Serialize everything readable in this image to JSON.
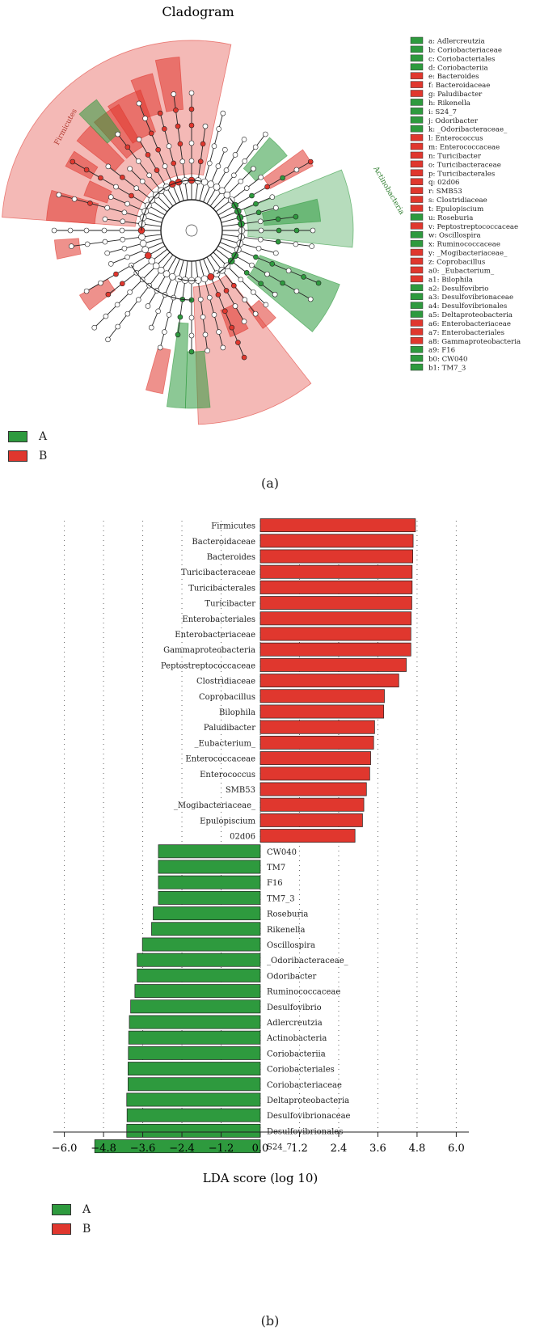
{
  "colors": {
    "A": "#2e9a3e",
    "B": "#e0372e",
    "A_light": "#c8eec0",
    "B_light": "#f9c9c4"
  },
  "cladogram": {
    "title": "Cladogram",
    "phylum_labels": [
      "Firmicutes",
      "Actinobacteria"
    ],
    "taxa": [
      {
        "code": "a",
        "name": "Adlercreutzia",
        "group": "A"
      },
      {
        "code": "b",
        "name": "Coriobacteriaceae",
        "group": "A"
      },
      {
        "code": "c",
        "name": "Coriobacteriales",
        "group": "A"
      },
      {
        "code": "d",
        "name": "Coriobacteriia",
        "group": "A"
      },
      {
        "code": "e",
        "name": "Bacteroides",
        "group": "B"
      },
      {
        "code": "f",
        "name": "Bacteroidaceae",
        "group": "B"
      },
      {
        "code": "g",
        "name": "Paludibacter",
        "group": "B"
      },
      {
        "code": "h",
        "name": "Rikenella",
        "group": "A"
      },
      {
        "code": "i",
        "name": "S24_7",
        "group": "A"
      },
      {
        "code": "j",
        "name": "Odoribacter",
        "group": "A"
      },
      {
        "code": "k",
        "name": "_Odoribacteraceae_",
        "group": "A"
      },
      {
        "code": "l",
        "name": "Enterococcus",
        "group": "B"
      },
      {
        "code": "m",
        "name": "Enterococcaceae",
        "group": "B"
      },
      {
        "code": "n",
        "name": "Turicibacter",
        "group": "B"
      },
      {
        "code": "o",
        "name": "Turicibacteraceae",
        "group": "B"
      },
      {
        "code": "p",
        "name": "Turicibacterales",
        "group": "B"
      },
      {
        "code": "q",
        "name": "02d06",
        "group": "B"
      },
      {
        "code": "r",
        "name": "SMB53",
        "group": "B"
      },
      {
        "code": "s",
        "name": "Clostridiaceae",
        "group": "B"
      },
      {
        "code": "t",
        "name": "Epulopiscium",
        "group": "B"
      },
      {
        "code": "u",
        "name": "Roseburia",
        "group": "A"
      },
      {
        "code": "v",
        "name": "Peptostreptococcaceae",
        "group": "B"
      },
      {
        "code": "w",
        "name": "Oscillospira",
        "group": "A"
      },
      {
        "code": "x",
        "name": "Ruminococcaceae",
        "group": "A"
      },
      {
        "code": "y",
        "name": "_Mogibacteriaceae_",
        "group": "B"
      },
      {
        "code": "z",
        "name": "Coprobacillus",
        "group": "B"
      },
      {
        "code": "a0",
        "name": "_Eubacterium_",
        "group": "B"
      },
      {
        "code": "a1",
        "name": "Bilophila",
        "group": "B"
      },
      {
        "code": "a2",
        "name": "Desulfovibrio",
        "group": "A"
      },
      {
        "code": "a3",
        "name": "Desulfovibrionaceae",
        "group": "A"
      },
      {
        "code": "a4",
        "name": "Desulfovibrionales",
        "group": "A"
      },
      {
        "code": "a5",
        "name": "Deltaproteobacteria",
        "group": "A"
      },
      {
        "code": "a6",
        "name": "Enterobacteriaceae",
        "group": "B"
      },
      {
        "code": "a7",
        "name": "Enterobacteriales",
        "group": "B"
      },
      {
        "code": "a8",
        "name": "Gammaproteobacteria",
        "group": "B"
      },
      {
        "code": "a9",
        "name": "F16",
        "group": "A"
      },
      {
        "code": "b0",
        "name": "CW040",
        "group": "A"
      },
      {
        "code": "b1",
        "name": "TM7_3",
        "group": "A"
      }
    ]
  },
  "legend": [
    {
      "name": "A"
    },
    {
      "name": "B"
    }
  ],
  "panel_labels": {
    "a": "(a)",
    "b": "(b)"
  },
  "chart_data": {
    "type": "bar",
    "orientation": "horizontal",
    "xlabel": "LDA score (log 10)",
    "xlim": [
      -6.0,
      6.0
    ],
    "xticks": [
      "−6.0",
      "−4.8",
      "−3.6",
      "−2.4",
      "−1.2",
      "0.0",
      "1.2",
      "2.4",
      "3.6",
      "4.8",
      "6.0"
    ],
    "xtick_values": [
      -6.0,
      -4.8,
      -3.6,
      -2.4,
      -1.2,
      0.0,
      1.2,
      2.4,
      3.6,
      4.8,
      6.0
    ],
    "grid": "vertical dotted",
    "categories": [
      "Firmicutes",
      "Bacteroidaceae",
      "Bacteroides",
      "Turicibacteraceae",
      "Turicibacterales",
      "Turicibacter",
      "Enterobacteriales",
      "Enterobacteriaceae",
      "Gammaproteobacteria",
      "Peptostreptococcaceae",
      "Clostridiaceae",
      "Coprobacillus",
      "Bilophila",
      "Paludibacter",
      "_Eubacterium_",
      "Enterococcaceae",
      "Enterococcus",
      "SMB53",
      "_Mogibacteriaceae_",
      "Epulopiscium",
      "02d06",
      "CW040",
      "TM7",
      "F16",
      "TM7_3",
      "Roseburia",
      "Rikenella",
      "Oscillospira",
      "_Odoribacteraceae_",
      "Odoribacter",
      "Ruminococcaceae",
      "Desulfovibrio",
      "Adlercreutzia",
      "Actinobacteria",
      "Coriobacteriia",
      "Coriobacteriales",
      "Coriobacteriaceae",
      "Deltaproteobacteria",
      "Desulfovibrionaceae",
      "Desulfovibrionales",
      "S24_7"
    ],
    "values": [
      4.75,
      4.68,
      4.67,
      4.65,
      4.65,
      4.64,
      4.62,
      4.61,
      4.61,
      4.47,
      4.24,
      3.8,
      3.78,
      3.5,
      3.47,
      3.38,
      3.35,
      3.25,
      3.17,
      3.13,
      2.9,
      -3.12,
      -3.12,
      -3.12,
      -3.12,
      -3.28,
      -3.33,
      -3.61,
      -3.77,
      -3.77,
      -3.84,
      -3.97,
      -4.01,
      -4.03,
      -4.04,
      -4.05,
      -4.05,
      -4.09,
      -4.08,
      -4.09,
      -5.07
    ],
    "groups": [
      "B",
      "B",
      "B",
      "B",
      "B",
      "B",
      "B",
      "B",
      "B",
      "B",
      "B",
      "B",
      "B",
      "B",
      "B",
      "B",
      "B",
      "B",
      "B",
      "B",
      "B",
      "A",
      "A",
      "A",
      "A",
      "A",
      "A",
      "A",
      "A",
      "A",
      "A",
      "A",
      "A",
      "A",
      "A",
      "A",
      "A",
      "A",
      "A",
      "A",
      "A"
    ],
    "legend": [
      "A",
      "B"
    ],
    "legend_position": "bottom-left"
  }
}
